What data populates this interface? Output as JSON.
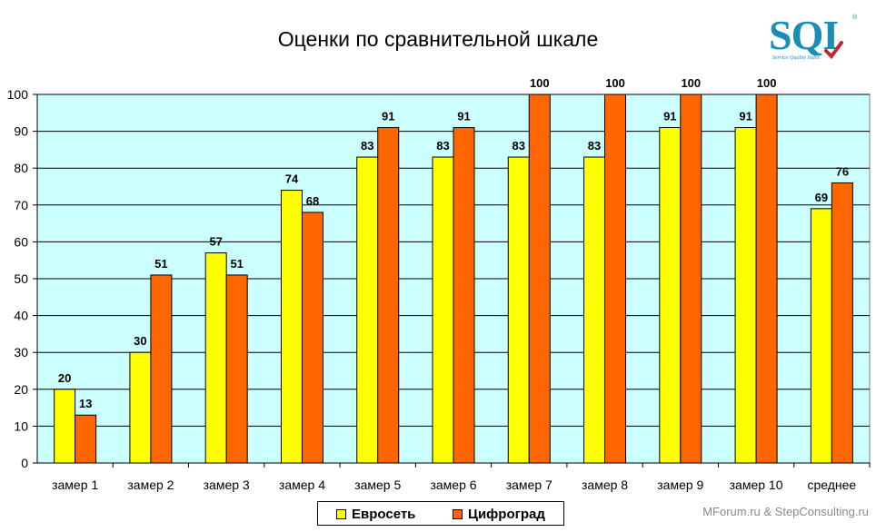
{
  "chart_data": {
    "type": "bar",
    "title": "Оценки по сравнительной шкале",
    "categories": [
      "замер 1",
      "замер 2",
      "замер 3",
      "замер 4",
      "замер 5",
      "замер 6",
      "замер 7",
      "замер 8",
      "замер 9",
      "замер 10",
      "среднее"
    ],
    "series": [
      {
        "name": "Евросеть",
        "color": "#ffff00",
        "values": [
          20,
          30,
          57,
          74,
          83,
          83,
          83,
          83,
          91,
          91,
          69
        ]
      },
      {
        "name": "Цифроград",
        "color": "#ff6600",
        "values": [
          13,
          51,
          51,
          68,
          91,
          91,
          100,
          100,
          100,
          100,
          76
        ]
      }
    ],
    "ylim": [
      0,
      100
    ],
    "yticks": [
      0,
      10,
      20,
      30,
      40,
      50,
      60,
      70,
      80,
      90,
      100
    ],
    "grid": true,
    "plot_background": "#ccffff",
    "legend_position": "bottom-center"
  },
  "logo": {
    "text": "SQI",
    "reg": "®",
    "subtitle": "Service Quality Index"
  },
  "credit": "MForum.ru & StepConsulting.ru"
}
